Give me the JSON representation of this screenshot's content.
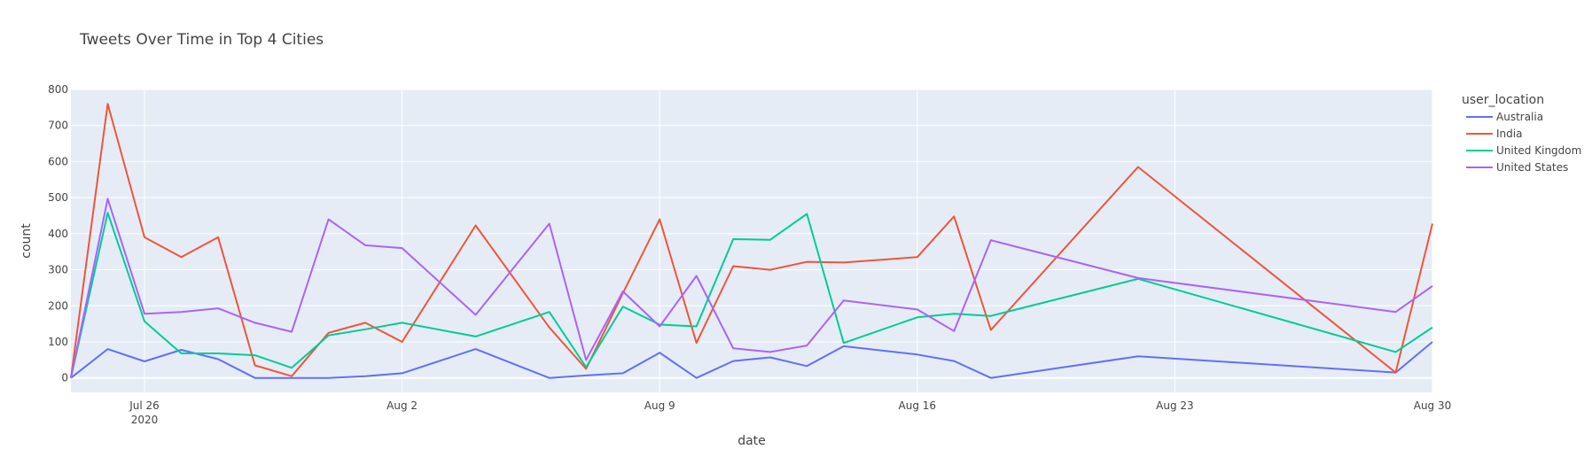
{
  "chart_data": {
    "type": "line",
    "title": "Tweets Over Time in Top 4 Cities",
    "xlabel": "date",
    "ylabel": "count",
    "xlim": [
      "2020-07-24",
      "2020-08-30"
    ],
    "ylim": [
      -40,
      800
    ],
    "x_ticks": [
      {
        "date": "2020-07-26",
        "label": "Jul 26",
        "sublabel": "2020"
      },
      {
        "date": "2020-08-02",
        "label": "Aug 2",
        "sublabel": ""
      },
      {
        "date": "2020-08-09",
        "label": "Aug 9",
        "sublabel": ""
      },
      {
        "date": "2020-08-16",
        "label": "Aug 16",
        "sublabel": ""
      },
      {
        "date": "2020-08-23",
        "label": "Aug 23",
        "sublabel": ""
      },
      {
        "date": "2020-08-30",
        "label": "Aug 30",
        "sublabel": ""
      }
    ],
    "y_ticks": [
      0,
      100,
      200,
      300,
      400,
      500,
      600,
      700,
      800
    ],
    "legend": {
      "title": "user_location",
      "position": "top-right"
    },
    "series": [
      {
        "name": "Australia",
        "color": "#636efa",
        "x": [
          "2020-07-24",
          "2020-07-25",
          "2020-07-26",
          "2020-07-27",
          "2020-07-28",
          "2020-07-29",
          "2020-07-30",
          "2020-07-31",
          "2020-08-01",
          "2020-08-02",
          "2020-08-04",
          "2020-08-06",
          "2020-08-07",
          "2020-08-08",
          "2020-08-09",
          "2020-08-10",
          "2020-08-11",
          "2020-08-12",
          "2020-08-13",
          "2020-08-14",
          "2020-08-16",
          "2020-08-17",
          "2020-08-18",
          "2020-08-22",
          "2020-08-29",
          "2020-08-30"
        ],
        "values": [
          0,
          80,
          46,
          78,
          52,
          0,
          0,
          0,
          5,
          13,
          80,
          0,
          7,
          13,
          70,
          0,
          47,
          57,
          33,
          88,
          65,
          47,
          0,
          60,
          15,
          100
        ]
      },
      {
        "name": "India",
        "color": "#ef553b",
        "x": [
          "2020-07-24",
          "2020-07-25",
          "2020-07-26",
          "2020-07-27",
          "2020-07-28",
          "2020-07-29",
          "2020-07-30",
          "2020-07-31",
          "2020-08-01",
          "2020-08-02",
          "2020-08-04",
          "2020-08-06",
          "2020-08-07",
          "2020-08-08",
          "2020-08-09",
          "2020-08-10",
          "2020-08-11",
          "2020-08-12",
          "2020-08-13",
          "2020-08-14",
          "2020-08-16",
          "2020-08-17",
          "2020-08-18",
          "2020-08-22",
          "2020-08-29",
          "2020-08-30"
        ],
        "values": [
          0,
          760,
          390,
          335,
          390,
          35,
          5,
          125,
          153,
          100,
          423,
          140,
          25,
          235,
          440,
          97,
          310,
          300,
          322,
          320,
          335,
          448,
          133,
          585,
          15,
          428
        ]
      },
      {
        "name": "United Kingdom",
        "color": "#00cc96",
        "x": [
          "2020-07-24",
          "2020-07-25",
          "2020-07-26",
          "2020-07-27",
          "2020-07-28",
          "2020-07-29",
          "2020-07-30",
          "2020-07-31",
          "2020-08-01",
          "2020-08-02",
          "2020-08-04",
          "2020-08-06",
          "2020-08-07",
          "2020-08-08",
          "2020-08-09",
          "2020-08-10",
          "2020-08-11",
          "2020-08-12",
          "2020-08-13",
          "2020-08-14",
          "2020-08-16",
          "2020-08-17",
          "2020-08-18",
          "2020-08-22",
          "2020-08-29",
          "2020-08-30"
        ],
        "values": [
          0,
          458,
          157,
          68,
          68,
          63,
          28,
          118,
          135,
          153,
          115,
          183,
          30,
          198,
          148,
          143,
          385,
          383,
          455,
          97,
          168,
          178,
          172,
          275,
          72,
          140
        ]
      },
      {
        "name": "United States",
        "color": "#ab63fa",
        "x": [
          "2020-07-24",
          "2020-07-25",
          "2020-07-26",
          "2020-07-27",
          "2020-07-28",
          "2020-07-29",
          "2020-07-30",
          "2020-07-31",
          "2020-08-01",
          "2020-08-02",
          "2020-08-04",
          "2020-08-06",
          "2020-08-07",
          "2020-08-08",
          "2020-08-09",
          "2020-08-10",
          "2020-08-11",
          "2020-08-12",
          "2020-08-13",
          "2020-08-14",
          "2020-08-16",
          "2020-08-17",
          "2020-08-18",
          "2020-08-22",
          "2020-08-29",
          "2020-08-30"
        ],
        "values": [
          0,
          497,
          178,
          183,
          193,
          153,
          128,
          440,
          368,
          360,
          175,
          428,
          50,
          240,
          143,
          283,
          82,
          72,
          90,
          215,
          190,
          130,
          382,
          277,
          183,
          255
        ]
      }
    ]
  }
}
